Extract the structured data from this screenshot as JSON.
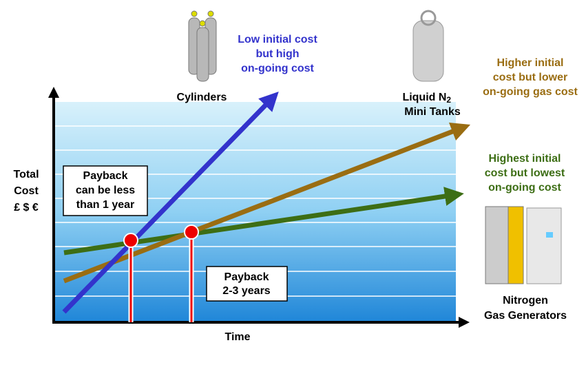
{
  "title_cylinders": "Cylinders",
  "note_cylinders": [
    "Low initial cost",
    "but high",
    "on-going cost"
  ],
  "title_tanks": {
    "text": "Liquid N",
    "subscript": "2",
    "line2": "Mini Tanks"
  },
  "note_tanks": [
    "Higher initial",
    "cost but lower",
    "on-going gas cost"
  ],
  "note_generators": [
    "Highest initial",
    "cost but lowest",
    "on-going cost"
  ],
  "title_generators": [
    "Nitrogen",
    "Gas Generators"
  ],
  "y_axis_label": [
    "Total",
    "Cost",
    "£ $ €"
  ],
  "x_axis_label": "Time",
  "payback_box_1": [
    "Payback",
    "can be less",
    "than 1 year"
  ],
  "payback_box_2": [
    "Payback",
    "2-3 years"
  ]
}
